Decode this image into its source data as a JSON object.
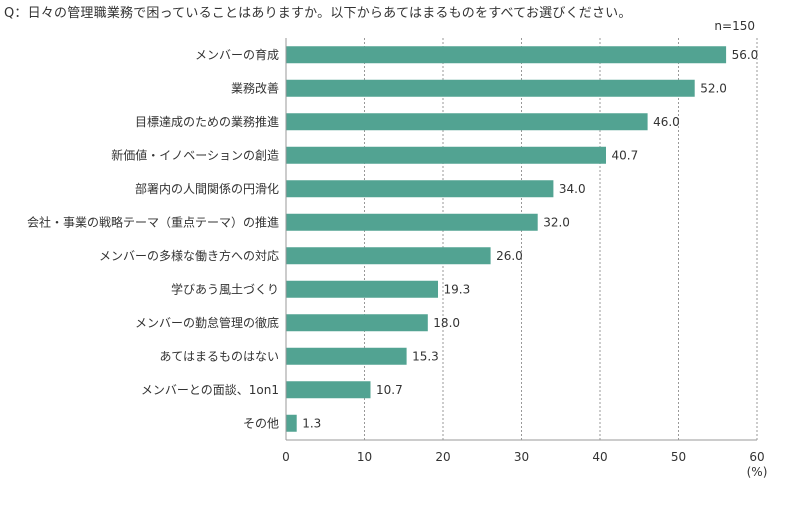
{
  "question": "Q：日々の管理職業務で困っていることはありますか。以下からあてはまるものをすべてお選びください。",
  "sample_size": "n=150",
  "colors": {
    "bar": "#52a392",
    "grid": "#999999",
    "axis": "#999999"
  },
  "chart_data": {
    "type": "bar",
    "orientation": "horizontal",
    "categories": [
      "メンバーの育成",
      "業務改善",
      "目標達成のための業務推進",
      "新価値・イノベーションの創造",
      "部署内の人間関係の円滑化",
      "会社・事業の戦略テーマ（重点テーマ）の推進",
      "メンバーの多様な働き方への対応",
      "学びあう風土づくり",
      "メンバーの勤怠管理の徹底",
      "あてはまるものはない",
      "メンバーとの面談、1on1",
      "その他"
    ],
    "values": [
      56.0,
      52.0,
      46.0,
      40.7,
      34.0,
      32.0,
      26.0,
      19.3,
      18.0,
      15.3,
      10.7,
      1.3
    ],
    "value_labels": [
      "56.0",
      "52.0",
      "46.0",
      "40.7",
      "34.0",
      "32.0",
      "26.0",
      "19.3",
      "18.0",
      "15.3",
      "10.7",
      "1.3"
    ],
    "xlim": [
      0,
      60
    ],
    "xticks": [
      "0",
      "10",
      "20",
      "30",
      "40",
      "50",
      "60"
    ],
    "xunit": "(%)",
    "grid": true
  }
}
